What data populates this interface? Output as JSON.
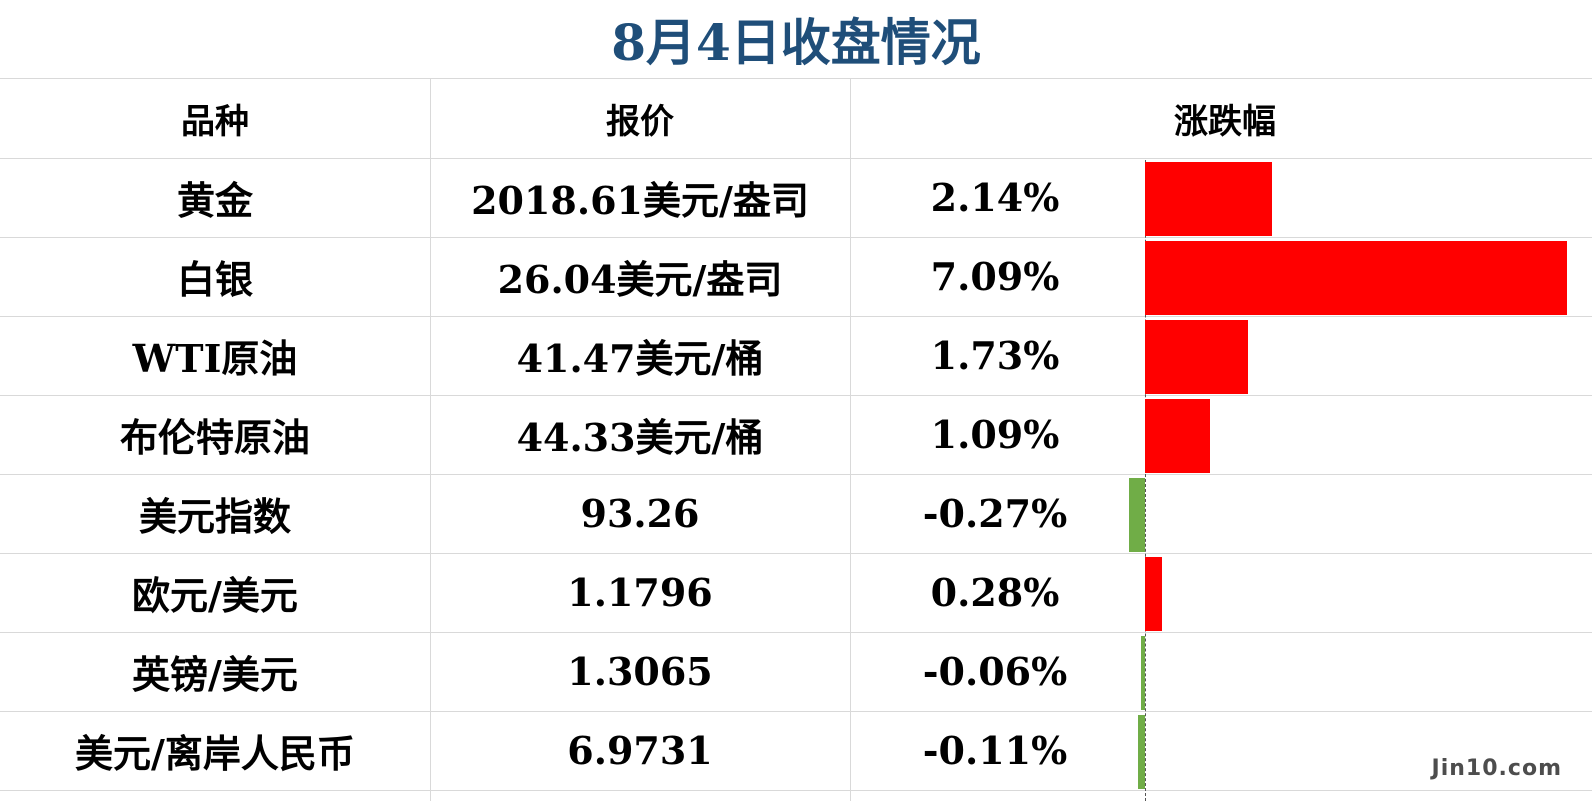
{
  "title": "8月4日收盘情况",
  "headers": {
    "variety": "品种",
    "price": "报价",
    "change": "涨跌幅"
  },
  "chart_data": {
    "type": "bar",
    "orientation": "horizontal",
    "title": "8月4日收盘情况",
    "categories": [
      "黄金",
      "白银",
      "WTI原油",
      "布伦特原油",
      "美元指数",
      "欧元/美元",
      "英镑/美元",
      "美元/离岸人民币"
    ],
    "prices": [
      "2018.61美元/盎司",
      "26.04美元/盎司",
      "41.47美元/桶",
      "44.33美元/桶",
      "93.26",
      "1.1796",
      "1.3065",
      "6.9731"
    ],
    "labels": [
      "2.14%",
      "7.09%",
      "1.73%",
      "1.09%",
      "-0.27%",
      "0.28%",
      "-0.06%",
      "-0.11%"
    ],
    "values": [
      2.14,
      7.09,
      1.73,
      1.09,
      -0.27,
      0.28,
      -0.06,
      -0.11
    ],
    "xlim": [
      -0.27,
      7.09
    ],
    "colors": {
      "positive": "#ff0000",
      "negative": "#70ad47"
    }
  },
  "watermark": "Jin10.com"
}
